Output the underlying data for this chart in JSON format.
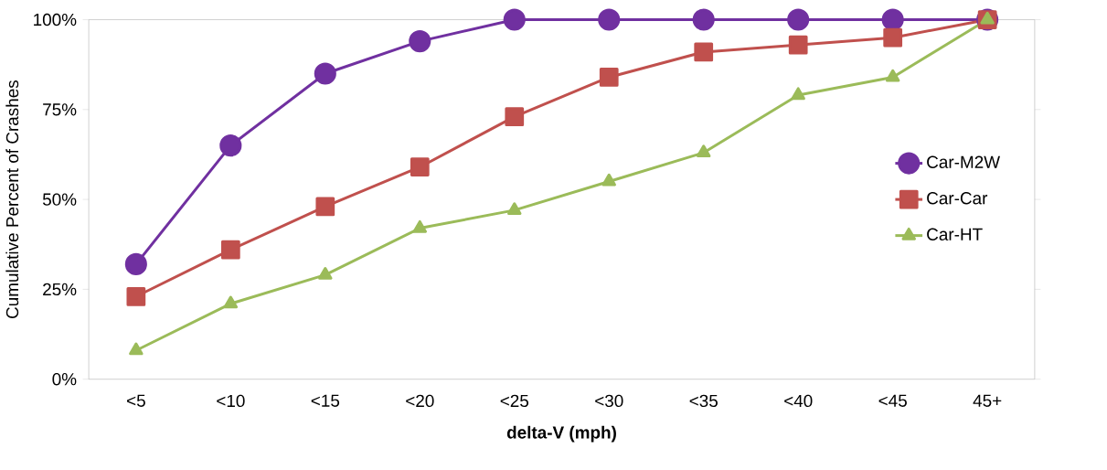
{
  "chart_data": {
    "type": "line",
    "xlabel": "delta-V (mph)",
    "ylabel": "Cumulative Percent of Crashes",
    "categories": [
      "<5",
      "<10",
      "<15",
      "<20",
      "<25",
      "<30",
      "<35",
      "<40",
      "<45",
      "45+"
    ],
    "series": [
      {
        "name": "Car-M2W",
        "color": "#7030a0",
        "marker": "circle",
        "values": [
          32,
          65,
          85,
          94,
          100,
          100,
          100,
          100,
          100,
          100
        ]
      },
      {
        "name": "Car-Car",
        "color": "#c0504d",
        "marker": "square",
        "values": [
          23,
          36,
          48,
          59,
          73,
          84,
          91,
          93,
          95,
          100
        ]
      },
      {
        "name": "Car-HT",
        "color": "#9bbb59",
        "marker": "triangle",
        "values": [
          8,
          21,
          29,
          42,
          47,
          55,
          63,
          79,
          84,
          100
        ]
      }
    ],
    "ylim": [
      0,
      100
    ],
    "yticks": [
      {
        "value": 0,
        "label": "0%"
      },
      {
        "value": 25,
        "label": "25%"
      },
      {
        "value": 50,
        "label": "50%"
      },
      {
        "value": 75,
        "label": "75%"
      },
      {
        "value": 100,
        "label": "100%"
      }
    ],
    "grid": false,
    "legend": "right",
    "line_style": "solid"
  }
}
